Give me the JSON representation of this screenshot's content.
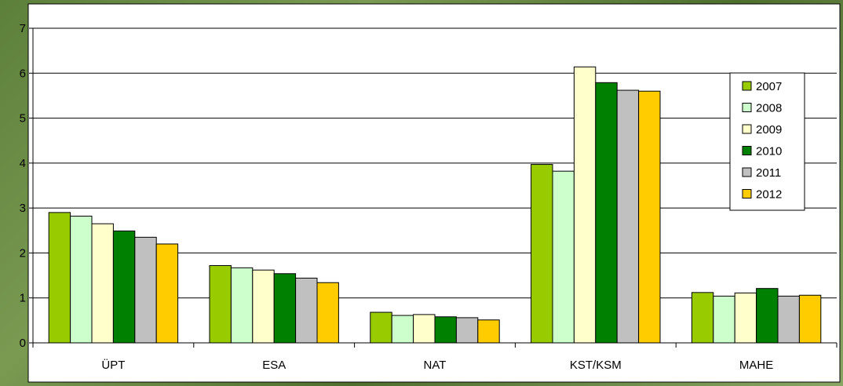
{
  "chart_data": {
    "type": "bar",
    "categories": [
      "ÜPT",
      "ESA",
      "NAT",
      "KST/KSM",
      "MAHE"
    ],
    "series": [
      {
        "name": "2007",
        "color": "#99cc00",
        "values": [
          2.9,
          1.72,
          0.68,
          3.97,
          1.12
        ]
      },
      {
        "name": "2008",
        "color": "#ccffcc",
        "values": [
          2.82,
          1.67,
          0.61,
          3.82,
          1.04
        ]
      },
      {
        "name": "2009",
        "color": "#ffffcc",
        "values": [
          2.65,
          1.62,
          0.63,
          6.14,
          1.11
        ]
      },
      {
        "name": "2010",
        "color": "#008000",
        "values": [
          2.49,
          1.54,
          0.58,
          5.79,
          1.21
        ]
      },
      {
        "name": "2011",
        "color": "#c0c0c0",
        "values": [
          2.35,
          1.44,
          0.56,
          5.62,
          1.04
        ]
      },
      {
        "name": "2012",
        "color": "#ffcc00",
        "values": [
          2.2,
          1.34,
          0.51,
          5.6,
          1.06
        ]
      }
    ],
    "yticks": [
      0,
      1,
      2,
      3,
      4,
      5,
      6,
      7
    ],
    "ylim": [
      0,
      7
    ],
    "title": "",
    "xlabel": "",
    "ylabel": "",
    "grid": true,
    "legend": "right"
  }
}
